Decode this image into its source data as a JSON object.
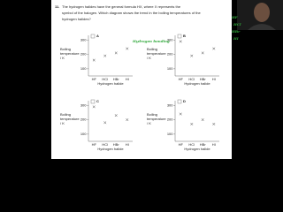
{
  "question": {
    "number": "11.",
    "lines": [
      "The hydrogen halides have the general formula HX, where X represents the",
      "symbol of the halogen. Which diagram shows the trend in the boiling temperatures of the",
      "hydrogen halides?"
    ]
  },
  "diagrams": [
    {
      "letter": "A",
      "ylabel": [
        "Boiling",
        "temperature",
        "/ K"
      ],
      "xlabel": "Hydrogen halide",
      "categories": [
        "HF",
        "HCl",
        "HBr",
        "HI"
      ],
      "values": [
        160,
        190,
        210,
        240
      ],
      "ylim": [
        50,
        320
      ],
      "yticks": [
        100,
        200,
        300
      ]
    },
    {
      "letter": "B",
      "ylabel": [
        "Boiling",
        "temperature",
        "/ K"
      ],
      "xlabel": "Hydrogen halide",
      "categories": [
        "HF",
        "HCl",
        "HBr",
        "HI"
      ],
      "values": [
        290,
        190,
        210,
        240
      ],
      "ylim": [
        50,
        320
      ],
      "yticks": [
        100,
        200,
        300
      ]
    },
    {
      "letter": "C",
      "ylabel": [
        "Boiling",
        "temperature",
        "/ K"
      ],
      "xlabel": "Hydrogen halide",
      "categories": [
        "HF",
        "HCl",
        "HBr",
        "HI"
      ],
      "values": [
        290,
        180,
        230,
        200
      ],
      "ylim": [
        50,
        320
      ],
      "yticks": [
        100,
        200,
        300
      ]
    },
    {
      "letter": "D",
      "ylabel": [
        "Boiling",
        "temperature",
        "/ K"
      ],
      "xlabel": "Hydrogen halide",
      "categories": [
        "HF",
        "HCl",
        "HBr",
        "HI"
      ],
      "values": [
        240,
        170,
        200,
        170
      ],
      "ylim": [
        50,
        320
      ],
      "yticks": [
        100,
        200,
        300
      ]
    }
  ],
  "annotations": {
    "formulas": [
      "HF",
      "HCl",
      "HBr",
      "HI"
    ],
    "note": "Hydrogen bonding"
  }
}
